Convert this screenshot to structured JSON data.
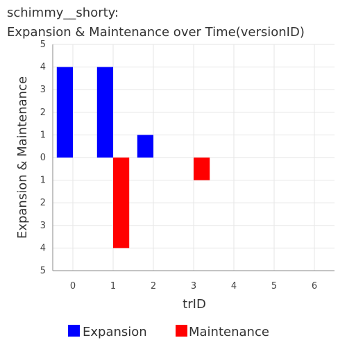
{
  "chart_data": {
    "type": "bar",
    "title_line1": "schimmy__shorty:",
    "title_line2": "Expansion & Maintenance over Time(versionID)",
    "xlabel": "trID",
    "ylabel": "Expansion & Maintenance",
    "categories": [
      "0",
      "1",
      "2",
      "3",
      "4",
      "5",
      "6"
    ],
    "x_ticks": [
      0,
      1,
      2,
      3,
      4,
      5,
      6
    ],
    "y_ticks": [
      5,
      4,
      3,
      2,
      1,
      0,
      -1,
      -2,
      -3,
      -4,
      -5
    ],
    "y_tick_labels": [
      "5",
      "4",
      "3",
      "2",
      "1",
      "0",
      "1",
      "2",
      "3",
      "4",
      "5"
    ],
    "ylim": [
      -5,
      5
    ],
    "xlim": [
      -0.5,
      6.5
    ],
    "grid": true,
    "legend_position": "bottom",
    "series": [
      {
        "name": "Expansion",
        "color": "#0000ff",
        "values": [
          4,
          4,
          1,
          0,
          0,
          0,
          0
        ]
      },
      {
        "name": "Maintenance",
        "color": "#ff0000",
        "values": [
          0,
          -4,
          0,
          -1,
          0,
          0,
          0
        ]
      }
    ]
  }
}
